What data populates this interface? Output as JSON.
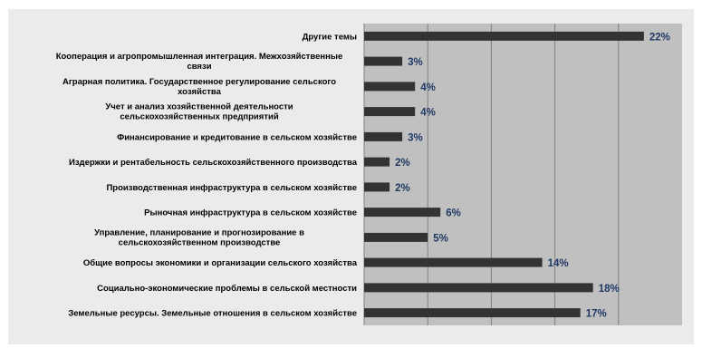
{
  "chart_data": {
    "type": "bar",
    "orientation": "horizontal",
    "categories": [
      "Другие темы",
      "Кооперация и агропромышленная интеграция. Межхозяйственные связи",
      "Аграрная политика. Государственное регулирование сельского хозяйства",
      "Учет и анализ хозяйственной деятельности сельскохозяйственных предприятий",
      "Финансирование и кредитование в сельском хозяйстве",
      "Издержки и рентабельность сельскохозяйственного производства",
      "Производственная инфраструктура в сельском хозяйстве",
      "Рыночная инфраструктура в сельском хозяйстве",
      "Управление, планирование и прогнозирование в сельскохозяйственном производстве",
      "Общие вопросы экономики и организации сельского хозяйства",
      "Социально-экономические проблемы в сельской местности",
      "Земельные ресурсы. Земельные отношения в сельском хозяйстве"
    ],
    "values": [
      22,
      3,
      4,
      4,
      3,
      2,
      2,
      6,
      5,
      14,
      18,
      17
    ],
    "value_labels": [
      "22%",
      "3%",
      "4%",
      "4%",
      "3%",
      "2%",
      "2%",
      "6%",
      "5%",
      "14%",
      "18%",
      "17%"
    ],
    "xlim": [
      0,
      25
    ],
    "grid": true,
    "legend": "none",
    "colors": {
      "bar": "#333333",
      "plot_background": "#c0c0c0",
      "outer_background": "#ebebeb",
      "gridline": "#808080",
      "value_label": "#1f3864",
      "category_label": "#000000"
    }
  }
}
